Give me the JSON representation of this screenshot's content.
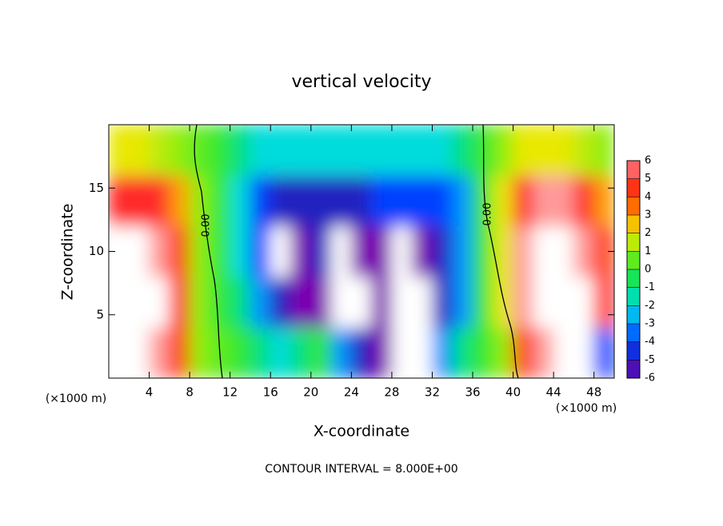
{
  "chart_data": {
    "type": "contour",
    "title": "vertical velocity",
    "x_label": "X-coordinate",
    "y_label": "Z-coordinate",
    "x_unit": "(×1000 m)",
    "x_unit_right": "(×1000 m)",
    "footnote": "CONTOUR INTERVAL = 8.000E+00",
    "contour_labels": [
      "0.00",
      "0.00"
    ],
    "xlim": [
      0,
      50
    ],
    "ylim": [
      0,
      20
    ],
    "xticks": [
      4,
      8,
      12,
      16,
      20,
      24,
      28,
      32,
      36,
      40,
      44,
      48
    ],
    "yticks": [
      5,
      10,
      15
    ],
    "x": [
      1,
      3,
      5,
      7,
      9,
      11,
      13,
      15,
      17,
      19,
      21,
      23,
      25,
      27,
      29,
      31,
      33,
      35,
      37,
      39,
      41,
      43,
      45,
      47,
      49
    ],
    "y": [
      2,
      6,
      10,
      14,
      18
    ],
    "values": [
      [
        7,
        7,
        6,
        4,
        1,
        0.5,
        0,
        -1,
        -2,
        -1,
        0,
        -3,
        -5,
        -6,
        -7,
        -7,
        -3,
        -1,
        0,
        1,
        4,
        6,
        7,
        7,
        -4
      ],
      [
        7,
        7,
        7,
        5,
        1,
        0,
        -1,
        -3,
        -5,
        -6,
        -6,
        -7,
        -7,
        -6,
        -7,
        -7,
        -5,
        -3,
        0,
        2,
        6,
        7,
        7,
        7,
        5
      ],
      [
        7,
        7,
        6,
        4,
        1,
        0,
        -2,
        -4,
        -7,
        -6,
        -5,
        -7,
        -6,
        -6,
        -7,
        -6,
        -5,
        -3,
        0,
        2,
        6,
        7,
        7,
        6,
        4
      ],
      [
        5,
        5,
        5,
        3,
        1,
        0,
        -2,
        -4,
        -5,
        -5,
        -5,
        -5,
        -5,
        -4,
        -4,
        -4,
        -4,
        -3,
        0,
        2,
        5,
        6,
        6,
        5,
        3
      ],
      [
        2,
        2,
        1.5,
        1,
        0.5,
        0,
        -1,
        -2,
        -2,
        -2,
        -2,
        -2,
        -2,
        -2,
        -2,
        -2,
        -2,
        -1,
        0,
        1,
        2,
        2,
        2,
        1.5,
        1
      ]
    ],
    "colorbar_ticks": [
      6,
      5,
      4,
      3,
      2,
      1,
      0,
      -1,
      -2,
      -3,
      -4,
      -5,
      -6
    ],
    "colorscale": [
      "#ff9a9a",
      "#ff2a2a",
      "#ff3c00",
      "#ff9c00",
      "#e8e800",
      "#90ee10",
      "#30e830",
      "#00e080",
      "#00dcdc",
      "#0096ff",
      "#0040ff",
      "#2020c0",
      "#7a00b0"
    ],
    "out_of_range_color": "#ffffff"
  }
}
